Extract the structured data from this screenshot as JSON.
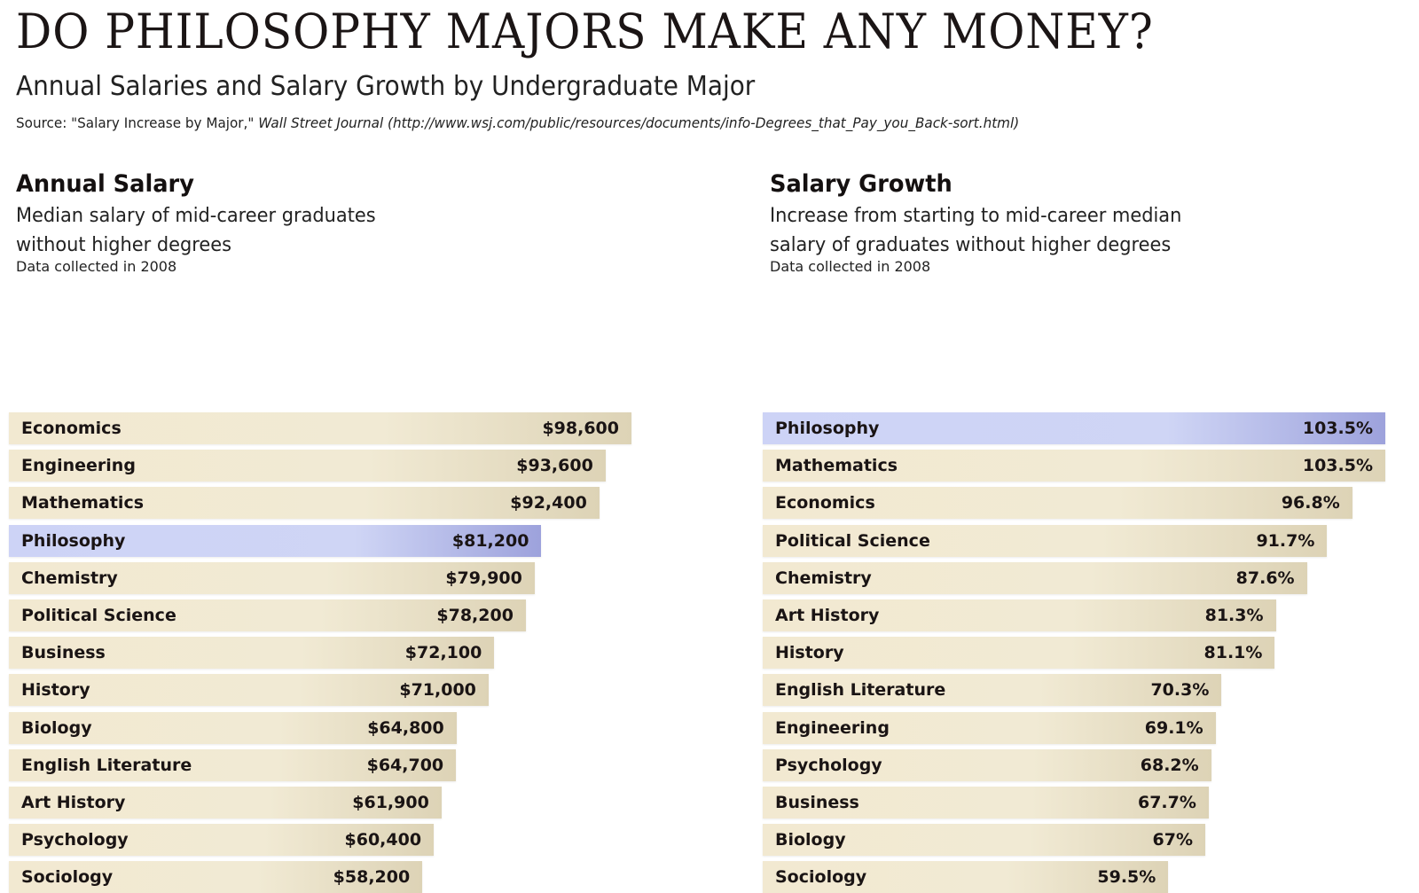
{
  "header": {
    "title": "DO PHILOSOPHY MAJORS MAKE ANY MONEY?",
    "subtitle": "Annual Salaries and Salary Growth by Undergraduate Major",
    "source_prefix": "Source: \"Salary Increase by Major,\" ",
    "source_publication": "Wall Street Journal",
    "source_url": " (http://www.wsj.com/public/resources/documents/info-Degrees_that_Pay_you_Back-sort.html)"
  },
  "colors": {
    "bar": "#efe6cc",
    "highlight": "#c9cff4"
  },
  "chart_data": [
    {
      "type": "bar",
      "orientation": "horizontal",
      "title": "Annual Salary",
      "subtitle_line1": "Median salary of mid-career graduates",
      "subtitle_line2": "without higher degrees",
      "note": "Data collected in 2008",
      "highlight": "Philosophy",
      "categories": [
        "Economics",
        "Engineering",
        "Mathematics",
        "Philosophy",
        "Chemistry",
        "Political Science",
        "Business",
        "History",
        "Biology",
        "English Literature",
        "Art History",
        "Psychology",
        "Sociology"
      ],
      "values": [
        98600,
        93600,
        92400,
        81200,
        79900,
        78200,
        72100,
        71000,
        64800,
        64700,
        61900,
        60400,
        58200
      ],
      "labels": [
        "$98,600",
        "$93,600",
        "$92,400",
        "$81,200",
        "$79,900",
        "$78,200",
        "$72,100",
        "$71,000",
        "$64,800",
        "$64,700",
        "$61,900",
        "$60,400",
        "$58,200"
      ],
      "xlim": [
        0,
        98600
      ]
    },
    {
      "type": "bar",
      "orientation": "horizontal",
      "title": "Salary Growth",
      "subtitle_line1": "Increase from starting to mid-career median",
      "subtitle_line2": "salary of graduates without higher degrees",
      "note": "Data collected in 2008",
      "highlight": "Philosophy",
      "categories": [
        "Philosophy",
        "Mathematics",
        "Economics",
        "Political Science",
        "Chemistry",
        "Art History",
        "History",
        "English Literature",
        "Engineering",
        "Psychology",
        "Business",
        "Biology",
        "Sociology"
      ],
      "values": [
        103.5,
        103.5,
        96.8,
        91.7,
        87.6,
        81.3,
        81.1,
        70.3,
        69.1,
        68.2,
        67.7,
        67,
        59.5
      ],
      "labels": [
        "103.5%",
        "103.5%",
        "96.8%",
        "91.7%",
        "87.6%",
        "81.3%",
        "81.1%",
        "70.3%",
        "69.1%",
        "68.2%",
        "67.7%",
        "67%",
        "59.5%"
      ],
      "xlim": [
        0,
        103.5
      ]
    }
  ]
}
